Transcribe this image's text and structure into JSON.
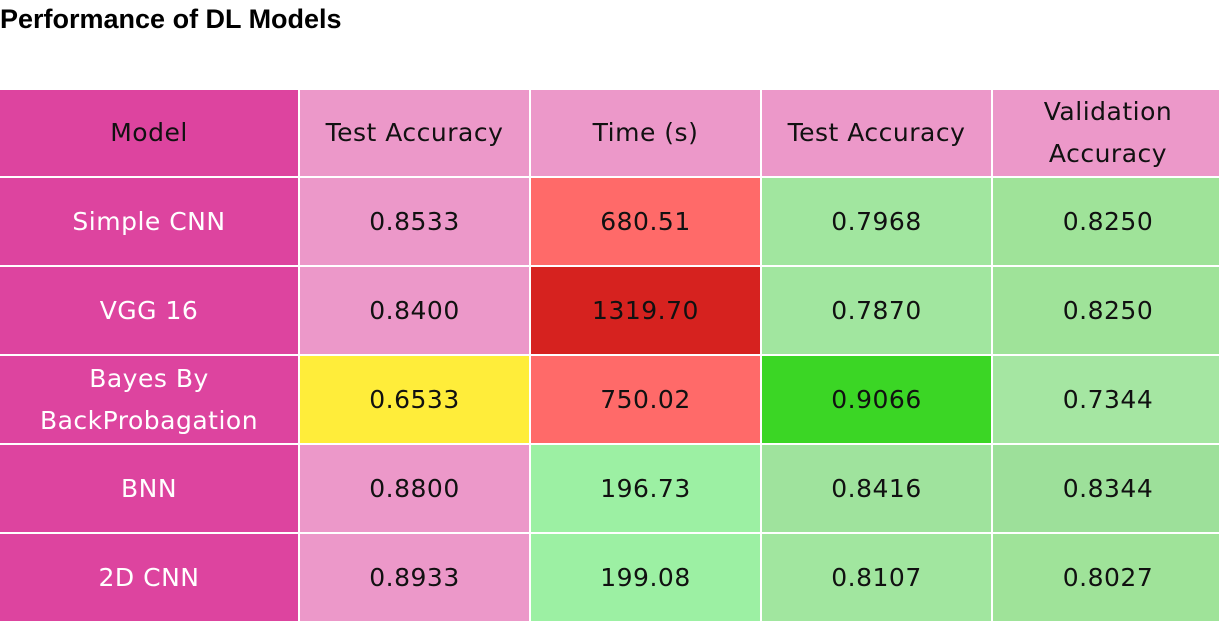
{
  "page": {
    "title": "Performance of DL Models"
  },
  "table": {
    "headers": [
      "Model",
      "Test Accuracy",
      "Time (s)",
      "Test Accuracy",
      "Validation Accuracy"
    ],
    "rows": [
      {
        "model": "Simple CNN",
        "values": [
          "0.8533",
          "680.51",
          "0.7968",
          "0.8250"
        ],
        "colors": [
          "#ec98c9",
          "#ff6a69",
          "#a1e69f",
          "#9fe399"
        ]
      },
      {
        "model": "VGG 16",
        "values": [
          "0.8400",
          "1319.70",
          "0.7870",
          "0.8250"
        ],
        "colors": [
          "#ec98c9",
          "#d6221f",
          "#a1e69f",
          "#9fe399"
        ]
      },
      {
        "model": "Bayes By BackProbagation",
        "values": [
          "0.6533",
          "750.02",
          "0.9066",
          "0.7344"
        ],
        "colors": [
          "#ffed3a",
          "#ff6a69",
          "#3bd625",
          "#a5e6a2"
        ]
      },
      {
        "model": "BNN",
        "values": [
          "0.8800",
          "196.73",
          "0.8416",
          "0.8344"
        ],
        "colors": [
          "#ec98c9",
          "#9cf0a3",
          "#9fe39d",
          "#9de09a"
        ]
      },
      {
        "model": "2D CNN",
        "values": [
          "0.8933",
          "199.08",
          "0.8107",
          "0.8027"
        ],
        "colors": [
          "#ec98c9",
          "#9cf0a3",
          "#a1e69f",
          "#9fe399"
        ]
      }
    ],
    "model_column_color": "#dd449f",
    "header_color": "#ec98c9"
  }
}
